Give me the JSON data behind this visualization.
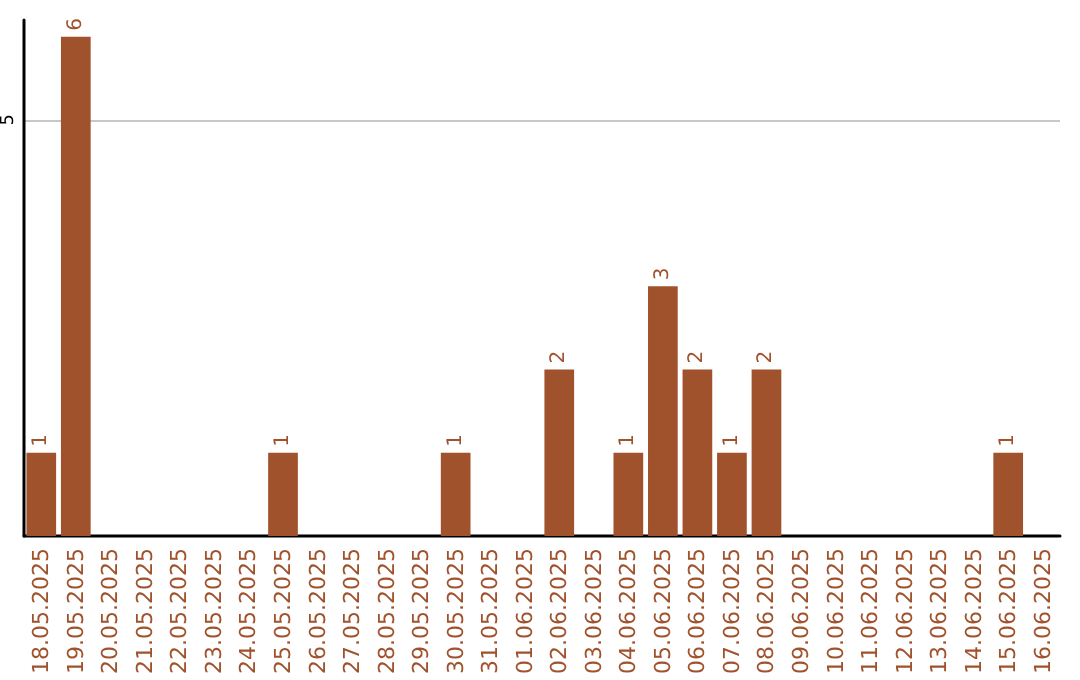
{
  "chart_data": {
    "type": "bar",
    "categories": [
      "18.05.2025",
      "19.05.2025",
      "20.05.2025",
      "21.05.2025",
      "22.05.2025",
      "23.05.2025",
      "24.05.2025",
      "25.05.2025",
      "26.05.2025",
      "27.05.2025",
      "28.05.2025",
      "29.05.2025",
      "30.05.2025",
      "31.05.2025",
      "01.06.2025",
      "02.06.2025",
      "03.06.2025",
      "04.06.2025",
      "05.06.2025",
      "06.06.2025",
      "07.06.2025",
      "08.06.2025",
      "09.06.2025",
      "10.06.2025",
      "11.06.2025",
      "12.06.2025",
      "13.06.2025",
      "14.06.2025",
      "15.06.2025",
      "16.06.2025"
    ],
    "values": [
      1,
      6,
      0,
      0,
      0,
      0,
      0,
      1,
      0,
      0,
      0,
      0,
      1,
      0,
      0,
      2,
      0,
      1,
      3,
      2,
      1,
      2,
      0,
      0,
      0,
      0,
      0,
      0,
      1,
      0
    ],
    "value_labels": [
      "1",
      "6",
      null,
      null,
      null,
      null,
      null,
      "1",
      null,
      null,
      null,
      null,
      "1",
      null,
      null,
      "2",
      null,
      "1",
      "3",
      "2",
      "1",
      "2",
      null,
      null,
      null,
      null,
      null,
      null,
      "1",
      null
    ],
    "color": "#a0522d",
    "ylim": [
      0,
      6.2
    ],
    "yticks": [
      5
    ],
    "grid": "y"
  }
}
